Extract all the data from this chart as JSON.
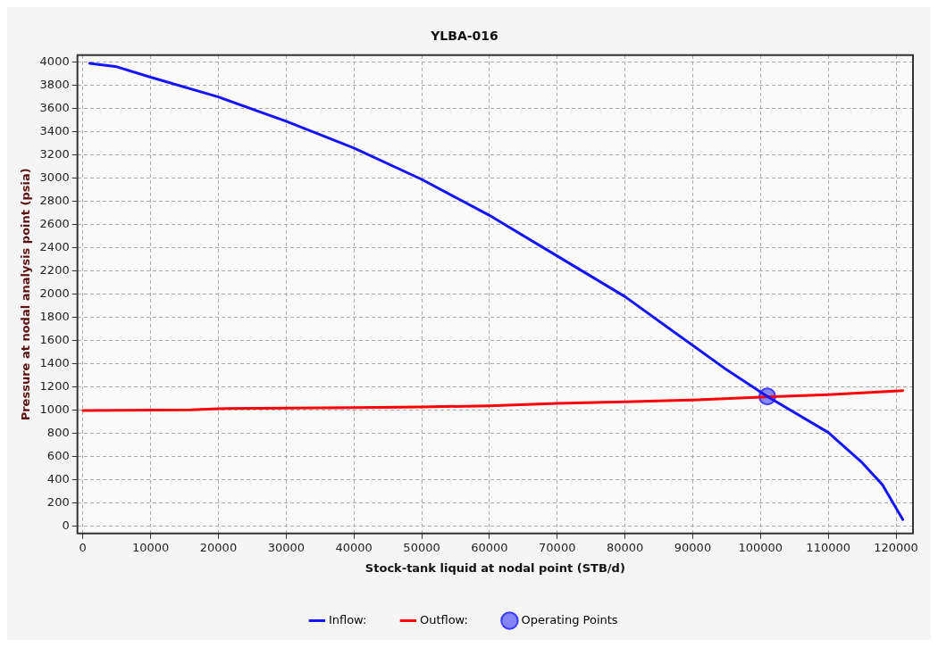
{
  "chart_data": {
    "type": "line",
    "title": "YLBA-016",
    "xlabel": "Stock-tank liquid at nodal point (STB/d)",
    "ylabel": "Pressure at nodal analysis point (psia)",
    "xlim": [
      -800,
      122500
    ],
    "xticks": [
      0,
      10000,
      20000,
      30000,
      40000,
      50000,
      60000,
      70000,
      80000,
      90000,
      100000,
      110000,
      120000
    ],
    "ylim": [
      -60,
      4060
    ],
    "yticks": [
      0,
      200,
      400,
      600,
      800,
      1000,
      1200,
      1400,
      1600,
      1800,
      2000,
      2200,
      2400,
      2600,
      2800,
      3000,
      3200,
      3400,
      3600,
      3800,
      4000
    ],
    "grid": true,
    "legend": "bottom",
    "marker": "none",
    "line_style": "solid",
    "series": [
      {
        "name": "Inflow:",
        "color": "#1414ff",
        "x": [
          1000,
          5000,
          10000,
          20000,
          30000,
          40000,
          50000,
          60000,
          70000,
          80000,
          90000,
          95000,
          101000,
          110000,
          115000,
          118000,
          121000
        ],
        "values": [
          3990,
          3960,
          3870,
          3700,
          3490,
          3260,
          2990,
          2680,
          2330,
          1980,
          1560,
          1350,
          1120,
          810,
          550,
          360,
          60
        ]
      },
      {
        "name": "Outflow:",
        "color": "#ff0000",
        "x": [
          0,
          16000,
          20000,
          40000,
          50000,
          60000,
          70000,
          80000,
          90000,
          100000,
          110000,
          121000
        ],
        "values": [
          1000,
          1005,
          1015,
          1025,
          1030,
          1040,
          1060,
          1075,
          1090,
          1115,
          1135,
          1170
        ]
      },
      {
        "name": "Operating Points",
        "type": "scatter",
        "marker": "circle",
        "color": "#3a3aff",
        "x": [
          101000
        ],
        "values": [
          1120
        ]
      }
    ]
  }
}
